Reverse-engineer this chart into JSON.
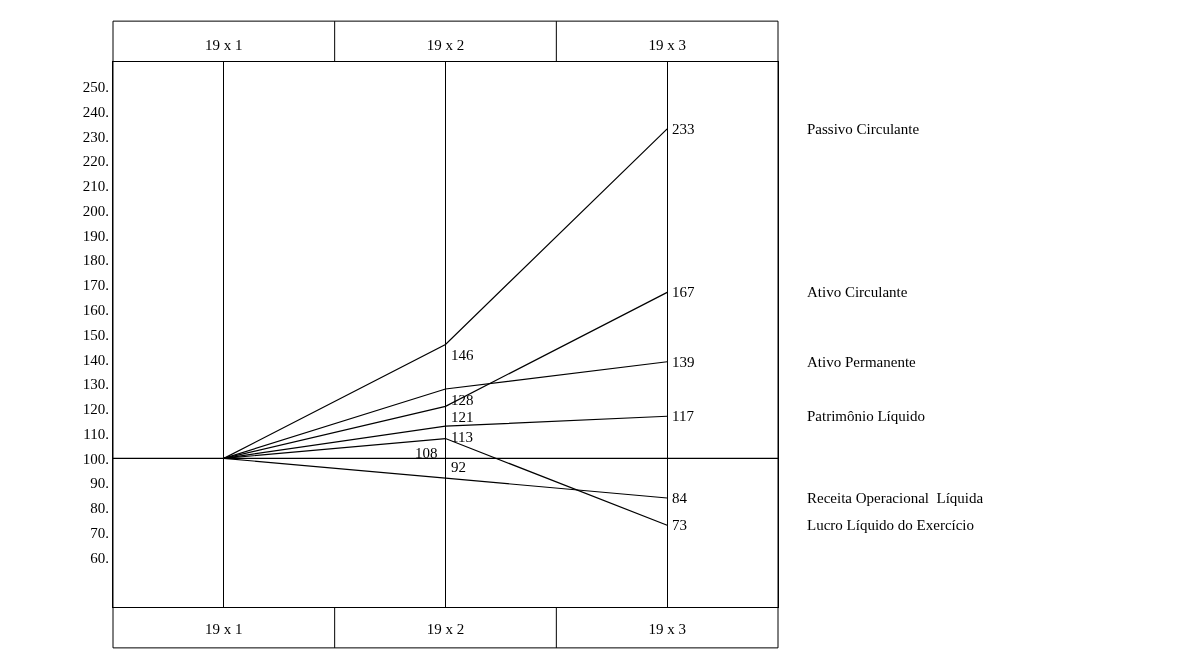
{
  "chart_data": {
    "type": "line",
    "categories": [
      "19 x 1",
      "19 x 2",
      "19 x 3"
    ],
    "ylim": [
      40,
      260
    ],
    "yticks": [
      {
        "value": 60,
        "label": "60."
      },
      {
        "value": 70,
        "label": "70."
      },
      {
        "value": 80,
        "label": "80."
      },
      {
        "value": 90,
        "label": "90."
      },
      {
        "value": 100,
        "label": "100."
      },
      {
        "value": 110,
        "label": "110."
      },
      {
        "value": 120,
        "label": "120."
      },
      {
        "value": 130,
        "label": "130."
      },
      {
        "value": 140,
        "label": "140."
      },
      {
        "value": 150,
        "label": "150."
      },
      {
        "value": 160,
        "label": "160."
      },
      {
        "value": 170,
        "label": "170."
      },
      {
        "value": 180,
        "label": "180."
      },
      {
        "value": 190,
        "label": "190."
      },
      {
        "value": 200,
        "label": "200."
      },
      {
        "value": 210,
        "label": "210."
      },
      {
        "value": 220,
        "label": "220."
      },
      {
        "value": 230,
        "label": "230."
      },
      {
        "value": 240,
        "label": "240."
      },
      {
        "value": 250,
        "label": "250."
      }
    ],
    "grid": "x",
    "line_style": "solid",
    "legend": false,
    "ref_lines": [
      {
        "axis": "y",
        "value": 100,
        "color": "#000000"
      }
    ],
    "series": [
      {
        "name": "Passivo Circulante",
        "color": "#000000",
        "values": [
          100,
          146,
          233
        ],
        "value_labels": [
          null,
          "146",
          "233"
        ]
      },
      {
        "name": "Ativo Circulante",
        "color": "#000000",
        "values": [
          100,
          121,
          167
        ],
        "value_labels": [
          null,
          "121",
          "167"
        ]
      },
      {
        "name": "Ativo Permanente",
        "color": "#000000",
        "values": [
          100,
          128,
          139
        ],
        "value_labels": [
          null,
          "128",
          "139"
        ]
      },
      {
        "name": "Patrimônio Líquido",
        "color": "#000000",
        "values": [
          100,
          113,
          117
        ],
        "value_labels": [
          null,
          "113",
          "117"
        ]
      },
      {
        "name": "Receita Operacional  Líquida",
        "color": "#000000",
        "values": [
          100,
          92,
          84
        ],
        "value_labels": [
          null,
          "92",
          "84"
        ]
      },
      {
        "name": "Lucro Líquido do Exercício",
        "color": "#000000",
        "values": [
          100,
          108,
          73
        ],
        "value_labels": [
          null,
          "108",
          "73"
        ]
      }
    ]
  }
}
